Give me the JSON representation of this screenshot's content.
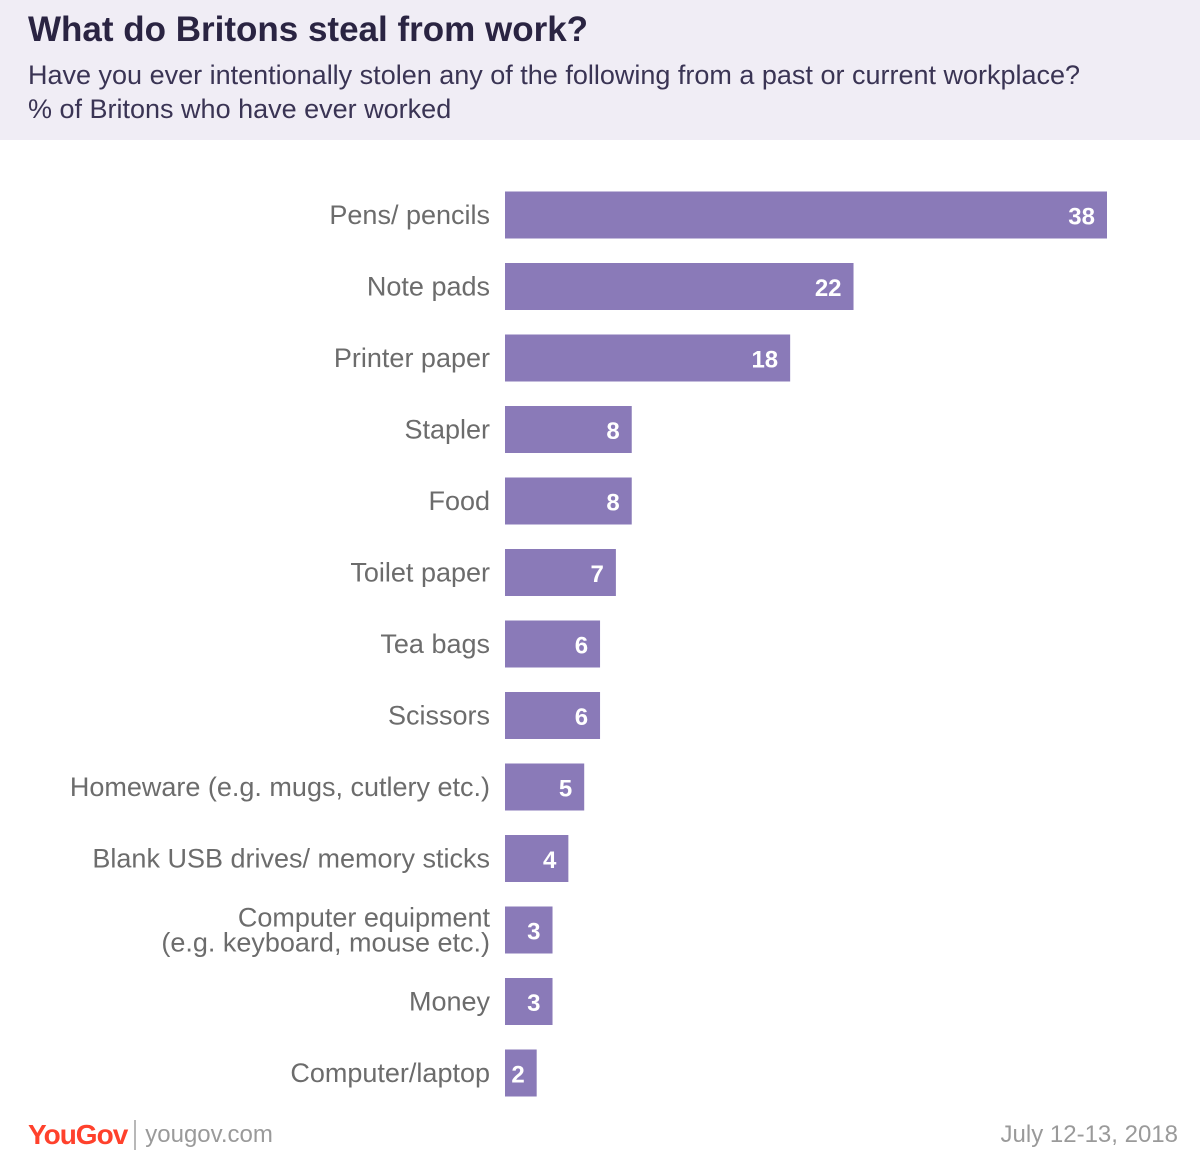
{
  "header": {
    "title": "What do Britons steal from work?",
    "subtitle": "Have you ever intentionally stolen any of the following from a past or current workplace? % of Britons who have ever worked"
  },
  "chart_data": {
    "type": "bar",
    "orientation": "horizontal",
    "title": "What do Britons steal from work?",
    "subtitle": "Have you ever intentionally stolen any of the following from a past or current workplace? % of Britons who have ever worked",
    "categories": [
      "Pens/ pencils",
      "Note pads",
      "Printer paper",
      "Stapler",
      "Food",
      "Toilet paper",
      "Tea bags",
      "Scissors",
      "Homeware (e.g. mugs, cutlery etc.)",
      "Blank USB drives/ memory sticks",
      "Computer equipment\n(e.g. keyboard, mouse etc.)",
      "Money",
      "Computer/laptop"
    ],
    "values": [
      38,
      22,
      18,
      8,
      8,
      7,
      6,
      6,
      5,
      4,
      3,
      3,
      2
    ],
    "xlabel": "",
    "ylabel": "",
    "xlim": [
      0,
      38
    ],
    "grid": false,
    "bar_color": "#8a7ab8",
    "value_label_inside_color": "#ffffff",
    "value_label_outside_color": "#7a6aa8",
    "label_color": "#6c6c6c"
  },
  "footer": {
    "logo": "YouGov",
    "site": "yougov.com",
    "date": "July 12-13, 2018"
  },
  "colors": {
    "header_bg": "#f0edf5",
    "title": "#2a2442",
    "brand": "#ff412c"
  }
}
